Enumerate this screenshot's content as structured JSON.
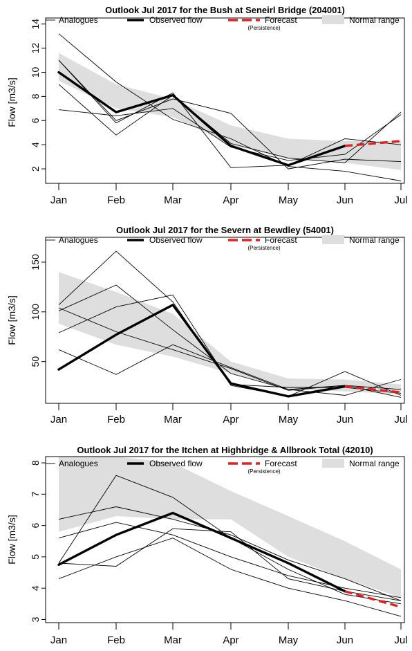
{
  "chart_data": [
    {
      "type": "line",
      "title": "Outlook Jul 2017 for the Bush at Seneirl Bridge (204001)",
      "ylabel": "Flow [m3/s]",
      "xlabel": "",
      "categories": [
        "Jan",
        "Feb",
        "Mar",
        "Apr",
        "May",
        "Jun",
        "Jul"
      ],
      "ylim": [
        0.8,
        14.5
      ],
      "yticks": [
        2,
        4,
        6,
        8,
        10,
        12,
        14
      ],
      "legend": {
        "analogues": "Analogues",
        "observed": "Observed flow",
        "forecast": "Forecast",
        "forecast_sub": "(Persistence)",
        "normal": "Normal range"
      },
      "normal_range": {
        "lower": [
          9.3,
          7.0,
          6.3,
          4.0,
          2.8,
          2.5,
          1.9
        ],
        "upper": [
          11.6,
          9.0,
          7.8,
          5.6,
          4.5,
          4.3,
          4.3
        ]
      },
      "analogues": [
        [
          13.2,
          9.2,
          6.1,
          4.5,
          2.2,
          1.8,
          1.0
        ],
        [
          11.0,
          5.8,
          8.3,
          2.1,
          2.3,
          4.5,
          4.0
        ],
        [
          9.0,
          4.8,
          8.1,
          4.1,
          2.9,
          2.5,
          6.7
        ],
        [
          6.9,
          6.4,
          7.0,
          3.8,
          2.7,
          3.2,
          6.5
        ],
        [
          11.0,
          6.0,
          7.8,
          6.6,
          2.0,
          2.8,
          2.6
        ]
      ],
      "observed": [
        10.0,
        6.7,
        8.1,
        3.9,
        2.3,
        3.9,
        null
      ],
      "forecast": {
        "x": [
          "Jun",
          "Jul"
        ],
        "values": [
          3.9,
          4.3
        ]
      },
      "colors": {
        "observed": "#000000",
        "analogues": "#000000",
        "forecast": "#e3201f",
        "normal": "#dedede"
      }
    },
    {
      "type": "line",
      "title": "Outlook Jul 2017 for the Severn at Bewdley (54001)",
      "ylabel": "Flow [m3/s]",
      "xlabel": "",
      "categories": [
        "Jan",
        "Feb",
        "Mar",
        "Apr",
        "May",
        "Jun",
        "Jul"
      ],
      "ylim": [
        8,
        175
      ],
      "yticks": [
        50,
        100,
        150
      ],
      "legend": {
        "analogues": "Analogues",
        "observed": "Observed flow",
        "forecast": "Forecast",
        "forecast_sub": "(Persistence)",
        "normal": "Normal range"
      },
      "normal_range": {
        "lower": [
          88,
          67,
          55,
          38,
          22,
          20,
          17
        ],
        "upper": [
          140,
          120,
          98,
          50,
          33,
          32,
          27
        ]
      },
      "analogues": [
        [
          107,
          161,
          110,
          26,
          15,
          40,
          16
        ],
        [
          62,
          37,
          67,
          44,
          22,
          16,
          32
        ],
        [
          101,
          127,
          82,
          38,
          22,
          26,
          22
        ],
        [
          79,
          105,
          117,
          27,
          24,
          24,
          18
        ],
        [
          104,
          80,
          62,
          43,
          21,
          26,
          14
        ]
      ],
      "observed": [
        42,
        77,
        107,
        28,
        15,
        25,
        null
      ],
      "forecast": {
        "x": [
          "Jun",
          "Jul"
        ],
        "values": [
          25,
          19
        ]
      },
      "colors": {
        "observed": "#000000",
        "analogues": "#000000",
        "forecast": "#e3201f",
        "normal": "#dedede"
      }
    },
    {
      "type": "line",
      "title": "Outlook Jul 2017 for the Itchen at Highbridge & Allbrook Total (42010)",
      "ylabel": "Flow [m3/s]",
      "xlabel": "",
      "categories": [
        "Jan",
        "Feb",
        "Mar",
        "Apr",
        "May",
        "Jun",
        "Jul"
      ],
      "ylim": [
        2.9,
        8.2
      ],
      "yticks": [
        3,
        4,
        5,
        6,
        7,
        8
      ],
      "legend": {
        "analogues": "Analogues",
        "observed": "Observed flow",
        "forecast": "Forecast",
        "forecast_sub": "(Persistence)",
        "normal": "Normal range"
      },
      "normal_range": {
        "lower": [
          5.8,
          6.3,
          6.2,
          6.2,
          5.0,
          4.3,
          3.7
        ],
        "upper": [
          8.2,
          8.2,
          8.0,
          7.1,
          6.3,
          5.5,
          4.6
        ]
      },
      "analogues": [
        [
          6.2,
          6.6,
          6.2,
          5.7,
          4.9,
          4.3,
          3.6
        ],
        [
          4.8,
          7.6,
          6.9,
          5.6,
          4.6,
          3.8,
          3.5
        ],
        [
          5.6,
          6.1,
          5.7,
          5.0,
          4.4,
          4.0,
          3.7
        ],
        [
          4.8,
          4.7,
          5.9,
          5.8,
          4.3,
          3.9,
          3.6
        ],
        [
          4.3,
          5.0,
          5.6,
          4.6,
          4.0,
          3.6,
          3.1
        ]
      ],
      "observed": [
        4.75,
        5.7,
        6.4,
        5.6,
        4.8,
        3.9,
        null
      ],
      "forecast": {
        "x": [
          "Jun",
          "Jul"
        ],
        "values": [
          3.9,
          3.4
        ]
      },
      "colors": {
        "observed": "#000000",
        "analogues": "#000000",
        "forecast": "#e3201f",
        "normal": "#dedede"
      }
    }
  ]
}
